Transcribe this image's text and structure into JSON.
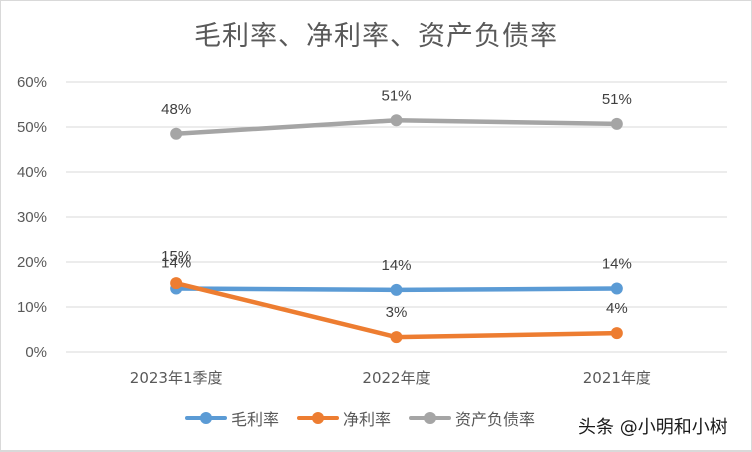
{
  "title": "毛利率、净利率、资产负债率",
  "chart_data": {
    "type": "line",
    "title": "毛利率、净利率、资产负债率",
    "xlabel": "",
    "ylabel": "",
    "categories": [
      "2023年1季度",
      "2022年度",
      "2021年度"
    ],
    "series": [
      {
        "name": "毛利率",
        "color": "#5B9BD5",
        "values": [
          14.1,
          13.8,
          14.1
        ],
        "labels": [
          "14%",
          "14%",
          "14%"
        ]
      },
      {
        "name": "净利率",
        "color": "#ED7D31",
        "values": [
          15.3,
          3.3,
          4.2
        ],
        "labels": [
          "15%",
          "3%",
          "4%"
        ]
      },
      {
        "name": "资产负债率",
        "color": "#A5A5A5",
        "values": [
          48.5,
          51.5,
          50.7
        ],
        "labels": [
          "48%",
          "51%",
          "51%"
        ]
      }
    ],
    "yticks": [
      "0%",
      "10%",
      "20%",
      "30%",
      "40%",
      "50%",
      "60%"
    ],
    "ylim": [
      0,
      60
    ],
    "grid": true,
    "legend_position": "bottom"
  },
  "legend": [
    {
      "label": "毛利率",
      "color": "#5B9BD5"
    },
    {
      "label": "净利率",
      "color": "#ED7D31"
    },
    {
      "label": "资产负债率",
      "color": "#A5A5A5"
    }
  ],
  "watermark": "头条 @小明和小树"
}
